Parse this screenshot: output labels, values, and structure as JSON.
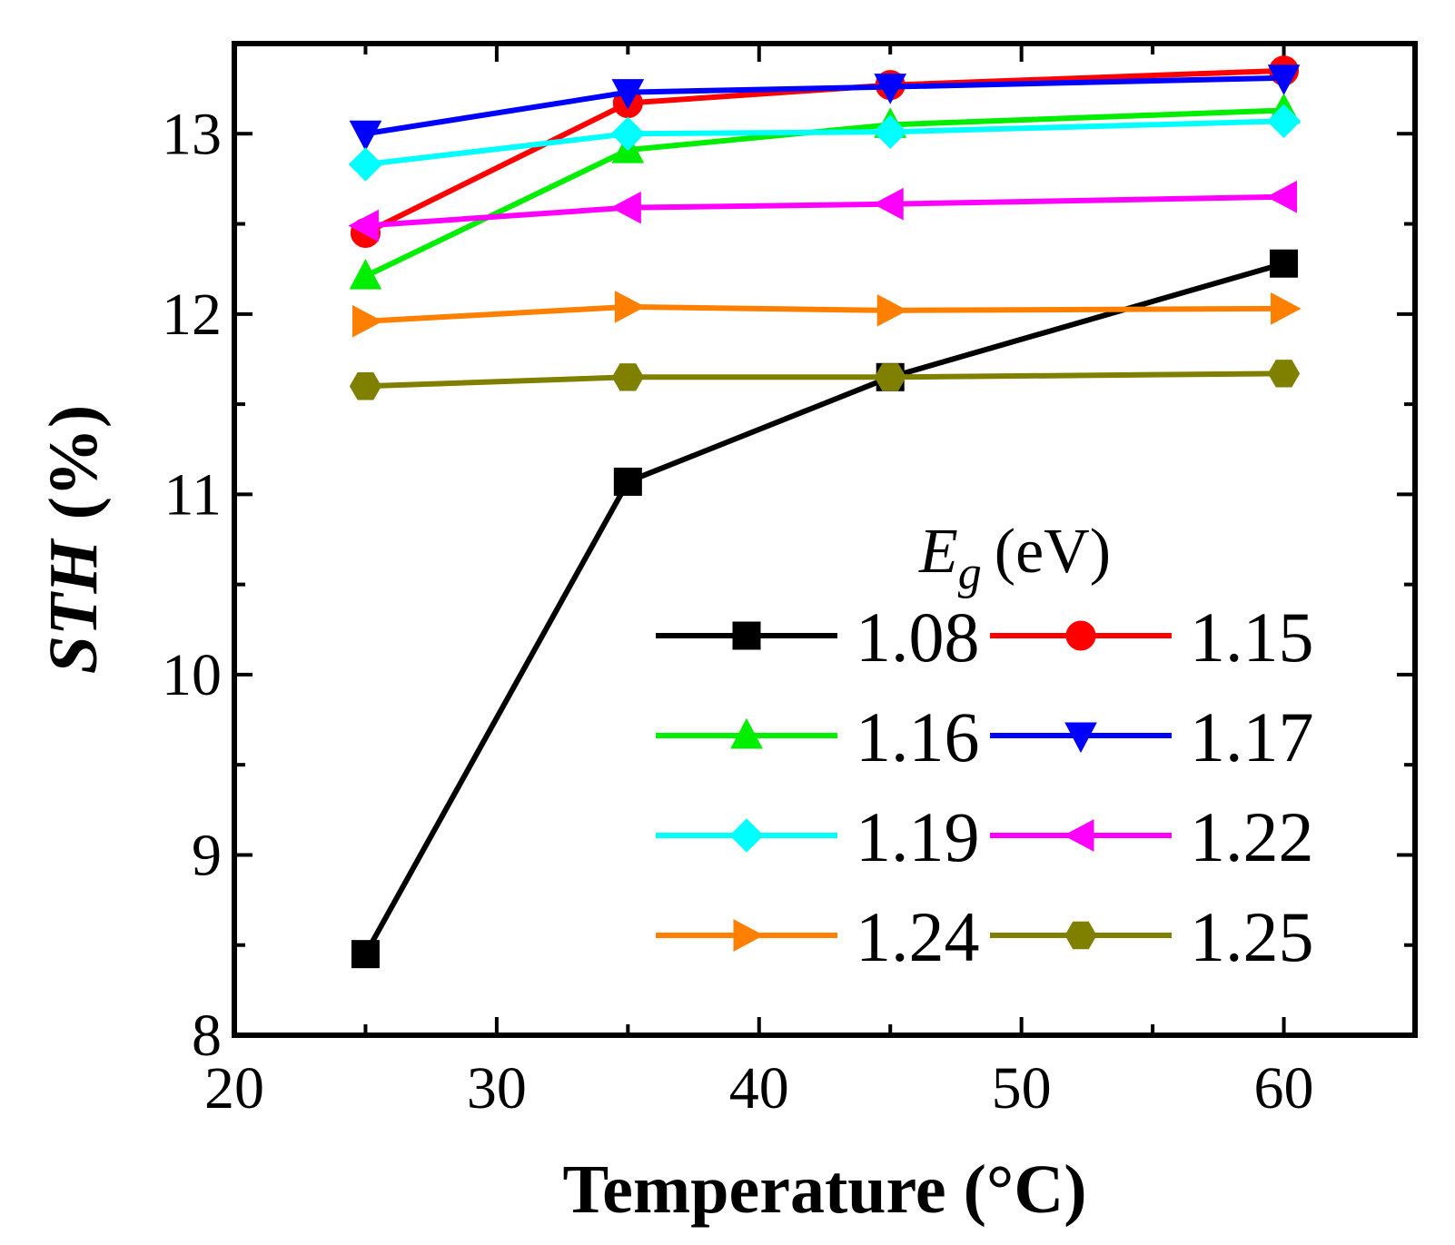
{
  "chart_data": {
    "type": "line",
    "title": "",
    "xlabel": "Temperature (°C)",
    "ylabel": "STH",
    "ylabel_unit": "(%)",
    "xlim": [
      20,
      65
    ],
    "ylim": [
      8,
      13.5
    ],
    "xticks": [
      20,
      30,
      40,
      50,
      60
    ],
    "yticks": [
      8,
      9,
      10,
      11,
      12,
      13
    ],
    "x": [
      25,
      35,
      45,
      60
    ],
    "grid": false,
    "legend": {
      "placement": "bottom-right",
      "title_var": "E",
      "title_sub": "g",
      "title_unit": "(eV)"
    },
    "series": [
      {
        "name": "1.08",
        "color": "#000000",
        "marker": "square",
        "values": [
          8.45,
          11.07,
          11.65,
          12.28
        ]
      },
      {
        "name": "1.15",
        "color": "#ff0000",
        "marker": "circle",
        "values": [
          12.45,
          13.17,
          13.27,
          13.35
        ]
      },
      {
        "name": "1.16",
        "color": "#00ee00",
        "marker": "triangle-up",
        "values": [
          12.21,
          12.91,
          13.05,
          13.13
        ]
      },
      {
        "name": "1.17",
        "color": "#0000ff",
        "marker": "triangle-down",
        "values": [
          13.0,
          13.23,
          13.26,
          13.31
        ]
      },
      {
        "name": "1.19",
        "color": "#00ffff",
        "marker": "diamond",
        "values": [
          12.83,
          13.0,
          13.01,
          13.07
        ]
      },
      {
        "name": "1.22",
        "color": "#ff00ff",
        "marker": "triangle-left",
        "values": [
          12.49,
          12.59,
          12.61,
          12.65
        ]
      },
      {
        "name": "1.24",
        "color": "#ff8000",
        "marker": "triangle-right",
        "values": [
          11.96,
          12.04,
          12.02,
          12.03
        ]
      },
      {
        "name": "1.25",
        "color": "#808000",
        "marker": "hexagon",
        "values": [
          11.6,
          11.65,
          11.65,
          11.67
        ]
      }
    ]
  }
}
